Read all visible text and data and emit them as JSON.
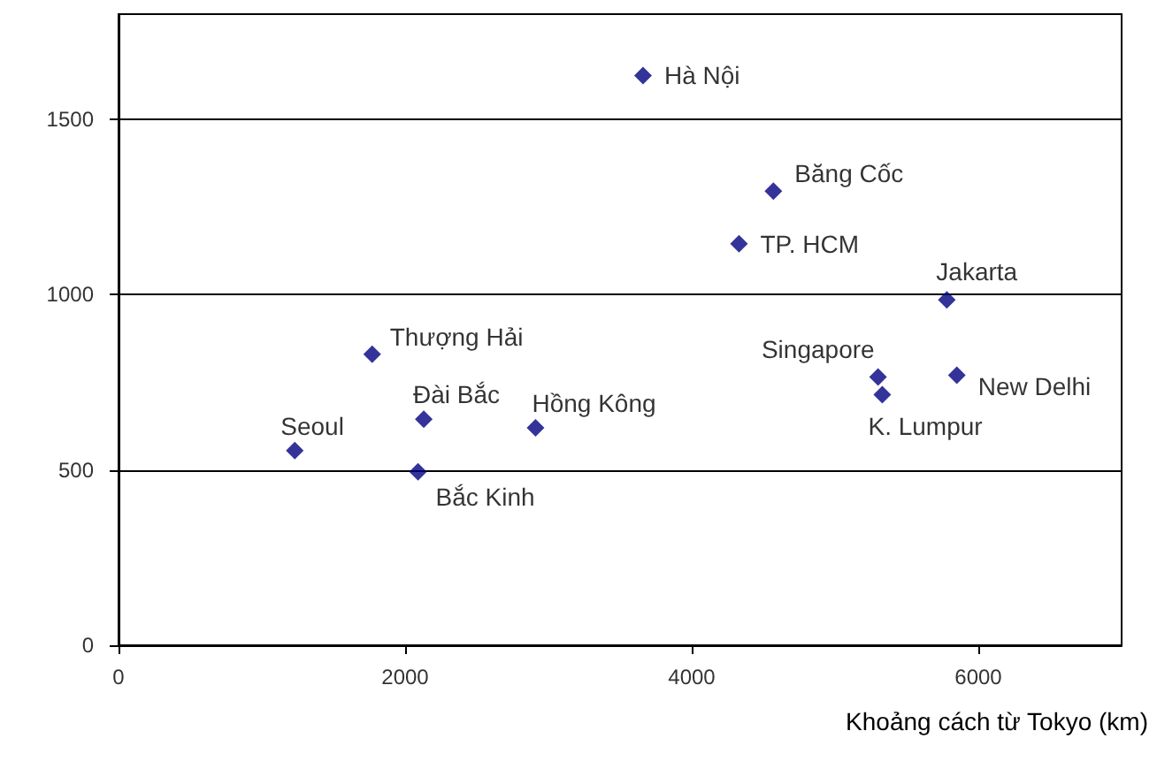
{
  "chart_data": {
    "type": "scatter",
    "xlabel": "Khoảng cách từ Tokyo (km)",
    "x": [
      3660,
      4570,
      4330,
      5780,
      5300,
      5330,
      5850,
      1770,
      2130,
      2910,
      1230,
      2090
    ],
    "values": [
      1625,
      1295,
      1145,
      985,
      765,
      715,
      770,
      830,
      645,
      620,
      555,
      495
    ],
    "color": "#000080",
    "marker": "diamond",
    "grid": "y",
    "xlim": [
      0,
      7000
    ],
    "xticks": [
      0,
      2000,
      4000,
      6000
    ],
    "ylim": [
      0,
      1800
    ],
    "yticks": [
      0,
      500,
      1000,
      1500
    ],
    "annotations": [
      {
        "text": "Hà Nội",
        "x": 3660,
        "y": 1625
      },
      {
        "text": "Băng Cốc",
        "x": 4570,
        "y": 1295
      },
      {
        "text": "TP. HCM",
        "x": 4330,
        "y": 1145
      },
      {
        "text": "Jakarta",
        "x": 5780,
        "y": 985
      },
      {
        "text": "Singapore",
        "x": 5300,
        "y": 765
      },
      {
        "text": "K. Lumpur",
        "x": 5330,
        "y": 715
      },
      {
        "text": "New Delhi",
        "x": 5850,
        "y": 770
      },
      {
        "text": "Thượng Hải",
        "x": 1770,
        "y": 830
      },
      {
        "text": "Đài Bắc",
        "x": 2130,
        "y": 645
      },
      {
        "text": "Hồng Kông",
        "x": 2910,
        "y": 620
      },
      {
        "text": "Seoul",
        "x": 1230,
        "y": 555
      },
      {
        "text": "Bắc Kinh",
        "x": 2090,
        "y": 495
      }
    ]
  }
}
